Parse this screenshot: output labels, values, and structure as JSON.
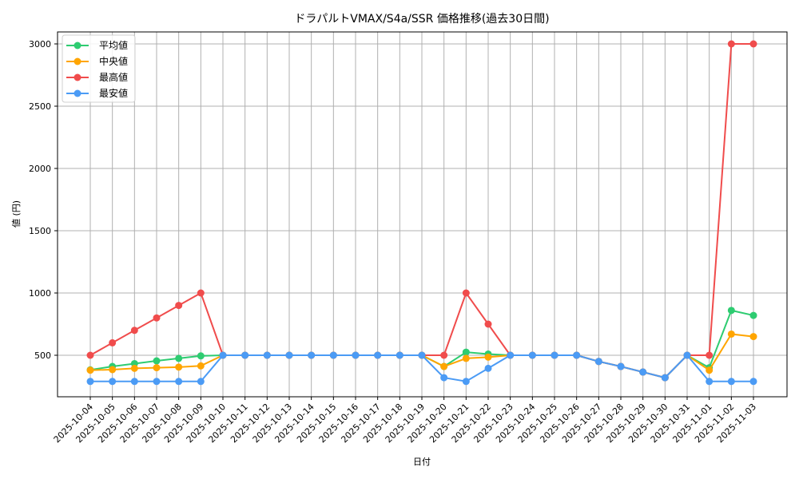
{
  "chart_data": {
    "type": "line",
    "title": "ドラパルトVMAX/S4a/SSR 価格推移(過去30日間)",
    "xlabel": "日付",
    "ylabel": "値 (円)",
    "ylim": [
      150,
      3130
    ],
    "yticks": [
      500,
      1000,
      1500,
      2000,
      2500,
      3000
    ],
    "grid": true,
    "legend_position": "upper left",
    "categories": [
      "2025-10-04",
      "2025-10-05",
      "2025-10-06",
      "2025-10-07",
      "2025-10-08",
      "2025-10-09",
      "2025-10-10",
      "2025-10-11",
      "2025-10-12",
      "2025-10-13",
      "2025-10-14",
      "2025-10-15",
      "2025-10-16",
      "2025-10-17",
      "2025-10-18",
      "2025-10-19",
      "2025-10-20",
      "2025-10-21",
      "2025-10-22",
      "2025-10-23",
      "2025-10-24",
      "2025-10-25",
      "2025-10-26",
      "2025-10-27",
      "2025-10-28",
      "2025-10-29",
      "2025-10-30",
      "2025-10-31",
      "2025-11-01",
      "2025-11-02",
      "2025-11-03"
    ],
    "series": [
      {
        "name": "平均値",
        "color": "#2ecc71",
        "values": [
          383,
          410,
          433,
          455,
          475,
          495,
          500,
          500,
          500,
          500,
          500,
          500,
          500,
          500,
          500,
          500,
          410,
          525,
          510,
          500,
          500,
          500,
          500,
          450,
          410,
          365,
          320,
          500,
          400,
          860,
          820
        ]
      },
      {
        "name": "中央値",
        "color": "#ffa500",
        "values": [
          380,
          385,
          395,
          400,
          405,
          415,
          500,
          500,
          500,
          500,
          500,
          500,
          500,
          500,
          500,
          500,
          410,
          475,
          485,
          500,
          500,
          500,
          500,
          450,
          410,
          365,
          320,
          500,
          380,
          670,
          650
        ]
      },
      {
        "name": "最高値",
        "color": "#f04c4c",
        "values": [
          500,
          600,
          700,
          800,
          900,
          1000,
          500,
          500,
          500,
          500,
          500,
          500,
          500,
          500,
          500,
          500,
          500,
          1000,
          750,
          500,
          500,
          500,
          500,
          450,
          410,
          365,
          320,
          500,
          500,
          3000,
          3000
        ]
      },
      {
        "name": "最安値",
        "color": "#4b9bf5",
        "values": [
          290,
          290,
          290,
          290,
          290,
          290,
          500,
          500,
          500,
          500,
          500,
          500,
          500,
          500,
          500,
          500,
          320,
          290,
          395,
          500,
          500,
          500,
          500,
          450,
          410,
          365,
          320,
          500,
          290,
          290,
          290
        ]
      }
    ]
  }
}
